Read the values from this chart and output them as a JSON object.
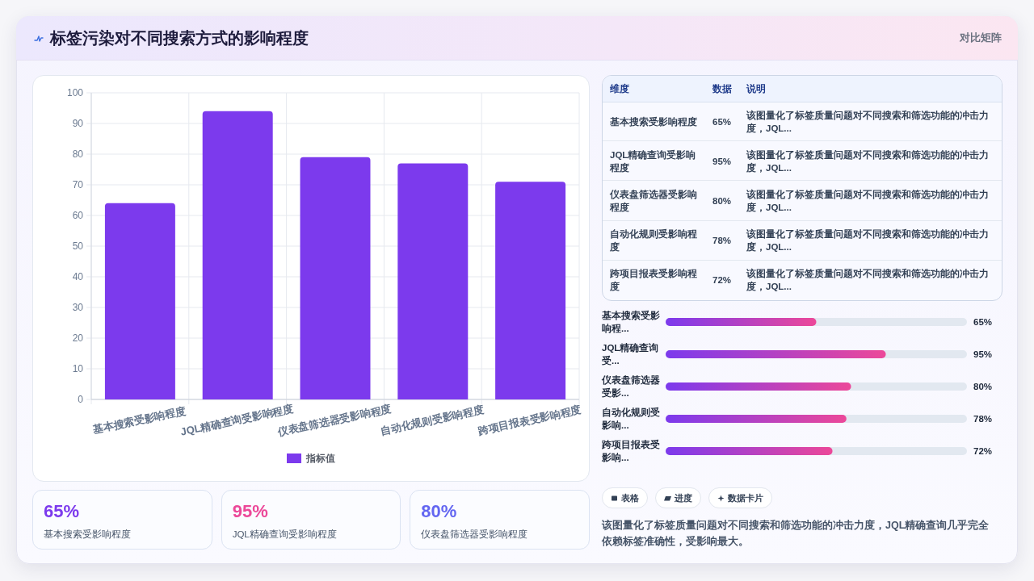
{
  "chart_data": [
    {
      "type": "bar",
      "title": "标签污染对不同搜索方式的影响程度",
      "annotations": [
        "对比矩阵"
      ],
      "categories": [
        "基本搜索受影响程度",
        "JQL精确查询受影响程度",
        "仪表盘筛选器受影响程度",
        "自动化规则受影响程度",
        "跨项目报表受影响程度"
      ],
      "series": [
        {
          "name": "指标值",
          "color": "#7c3aed",
          "values": [
            64,
            94,
            79,
            77,
            71
          ]
        }
      ],
      "ylim": [
        0,
        100
      ],
      "yticks": [
        0,
        10,
        20,
        30,
        40,
        50,
        60,
        70,
        80,
        90,
        100
      ],
      "grid": true,
      "legend": "bottom"
    },
    {
      "type": "other",
      "categories": [
        "基本搜索受影响程度",
        "JQL精确查询受影响程度",
        "仪表盘筛选器受影响程度",
        "自动化规则受影响程度",
        "跨项目报表受影响程度"
      ],
      "value_labels": [
        "65%",
        "95%",
        "80%",
        "78%",
        "72%"
      ],
      "annotations": [
        "维度",
        "数据",
        "说明",
        "该图量化了标签质量问题对不同搜索和筛选功能的冲击力度，JQL...",
        "该图量化了标签质量问题对不同搜索和筛选功能的冲击力度，JQL...",
        "该图量化了标签质量问题对不同搜索和筛选功能的冲击力度，JQL...",
        "该图量化了标签质量问题对不同搜索和筛选功能的冲击力度，JQL...",
        "该图量化了标签质量问题对不同搜索和筛选功能的冲击力度，JQL..."
      ]
    },
    {
      "type": "bar",
      "orientation": "horizontal",
      "categories": [
        "基本搜索受影响程...",
        "JQL精确查询受...",
        "仪表盘筛选器受影...",
        "自动化规则受影响...",
        "跨项目报表受影响..."
      ],
      "series": [
        {
          "color": "#7c3aed",
          "values": [
            65,
            95,
            80,
            78,
            72
          ],
          "value_labels": [
            "65%",
            "95%",
            "80%",
            "78%",
            "72%"
          ]
        }
      ],
      "xlim": [
        0,
        130
      ],
      "tick_labels": "y"
    },
    {
      "type": "other",
      "categories": [
        "基本搜索受影响程度",
        "JQL精确查询受影响程度",
        "仪表盘筛选器受影响程度"
      ],
      "value_labels": [
        "65%",
        "95%",
        "80%"
      ]
    },
    {
      "type": "other",
      "annotations": [
        "表格",
        "进度",
        "数据卡片",
        "该图量化了标签质量问题对不同搜索和筛选功能的冲击力度，JQL精确查询几乎完全依赖标签准确性，受影响最大。"
      ]
    }
  ]
}
